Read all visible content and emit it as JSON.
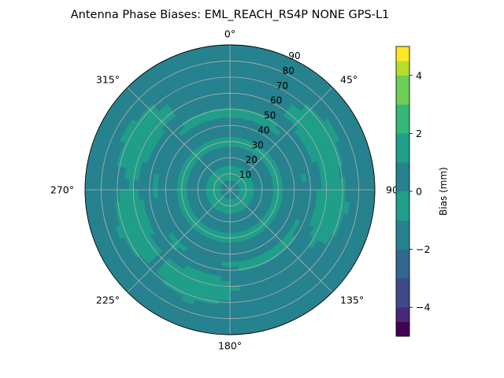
{
  "chart_data": {
    "type": "polar-contour",
    "title": "Antenna Phase Biases: EML_REACH_RS4P  NONE GPS-L1",
    "angular_ticks": [
      {
        "angle": 0,
        "label": "0°"
      },
      {
        "angle": 45,
        "label": "45°"
      },
      {
        "angle": 90,
        "label": "90°"
      },
      {
        "angle": 135,
        "label": "135°"
      },
      {
        "angle": 180,
        "label": "180°"
      },
      {
        "angle": 225,
        "label": "225°"
      },
      {
        "angle": 270,
        "label": "270°"
      },
      {
        "angle": 315,
        "label": "315°"
      }
    ],
    "angular_direction": "clockwise",
    "zero_location": "top",
    "radial_ticks": [
      10,
      20,
      30,
      40,
      50,
      60,
      70,
      80,
      90
    ],
    "radial_range": [
      0,
      90
    ],
    "grid": true,
    "colorbar": {
      "label": "Bias (mm)",
      "range": [
        -5,
        5
      ],
      "ticks": [
        -4,
        -2,
        0,
        2,
        4
      ],
      "colormap": "viridis",
      "levels": [
        {
          "from": -5.0,
          "to": -4.5,
          "color": "#440154"
        },
        {
          "from": -4.5,
          "to": -4.0,
          "color": "#482878"
        },
        {
          "from": -4.0,
          "to": -3.0,
          "color": "#3e4a89"
        },
        {
          "from": -3.0,
          "to": -2.0,
          "color": "#31688e"
        },
        {
          "from": -2.0,
          "to": -1.0,
          "color": "#26828e"
        },
        {
          "from": -1.0,
          "to": 0.0,
          "color": "#1f9e89"
        },
        {
          "from": 0.0,
          "to": 1.0,
          "color": "#26828e"
        },
        {
          "from": 1.0,
          "to": 2.0,
          "color": "#1f9e89"
        },
        {
          "from": 2.0,
          "to": 3.0,
          "color": "#35b779"
        },
        {
          "from": 3.0,
          "to": 4.0,
          "color": "#6ece58"
        },
        {
          "from": 4.0,
          "to": 4.5,
          "color": "#b5de2b"
        },
        {
          "from": 4.5,
          "to": 5.0,
          "color": "#fde725"
        }
      ]
    },
    "bias_pattern": {
      "zenith_bias": -1.5,
      "mid_elevation_ring_bias": -1.0,
      "outer_bias": 0.5,
      "high_lobe_azimuths": [
        60,
        100,
        200,
        250,
        300
      ],
      "high_lobe_bias": 1.5
    }
  }
}
